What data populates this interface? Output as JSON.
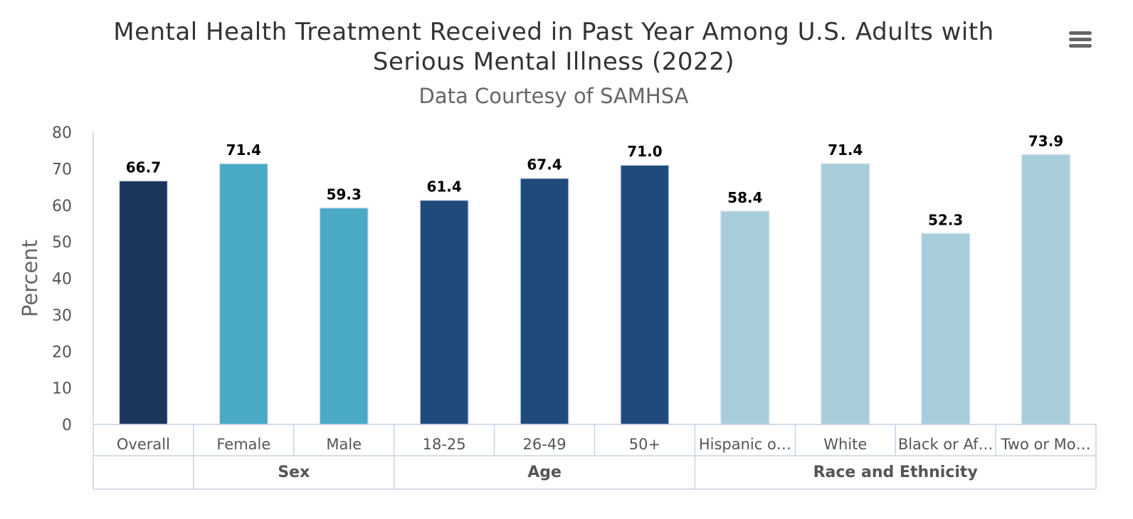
{
  "header": {
    "title_line1": "Mental Health Treatment Received in Past Year Among U.S. Adults with",
    "title_line2": "Serious Mental Illness (2022)",
    "subtitle": "Data Courtesy of SAMHSA",
    "menu_icon": "hamburger-menu-icon"
  },
  "chart_data": {
    "type": "bar",
    "title": "Mental Health Treatment Received in Past Year Among U.S. Adults with Serious Mental Illness (2022)",
    "subtitle": "Data Courtesy of SAMHSA",
    "xlabel": "",
    "ylabel": "Percent",
    "ylim": [
      0,
      80
    ],
    "yticks": [
      0,
      10,
      20,
      30,
      40,
      50,
      60,
      70,
      80
    ],
    "grid": false,
    "categories": [
      "Overall",
      "Female",
      "Male",
      "18-25",
      "26-49",
      "50+",
      "Hispanic o…",
      "White",
      "Black or Af…",
      "Two or Mo…"
    ],
    "values": [
      66.7,
      71.4,
      59.3,
      61.4,
      67.4,
      71.0,
      58.4,
      71.4,
      52.3,
      73.9
    ],
    "value_labels": [
      "66.7",
      "71.4",
      "59.3",
      "61.4",
      "67.4",
      "71.0",
      "58.4",
      "71.4",
      "52.3",
      "73.9"
    ],
    "colors": [
      "#1a365d",
      "#4aaac6",
      "#4aaac6",
      "#1f4a7c",
      "#1f4a7c",
      "#1f4a7c",
      "#a7cddb",
      "#a7cddb",
      "#a7cddb",
      "#a7cddb"
    ],
    "groups": [
      {
        "label": "",
        "categories": [
          "Overall"
        ]
      },
      {
        "label": "Sex",
        "categories": [
          "Female",
          "Male"
        ]
      },
      {
        "label": "Age",
        "categories": [
          "18-25",
          "26-49",
          "50+"
        ]
      },
      {
        "label": "Race and Ethnicity",
        "categories": [
          "Hispanic o…",
          "White",
          "Black or Af…",
          "Two or Mo…"
        ]
      }
    ]
  }
}
